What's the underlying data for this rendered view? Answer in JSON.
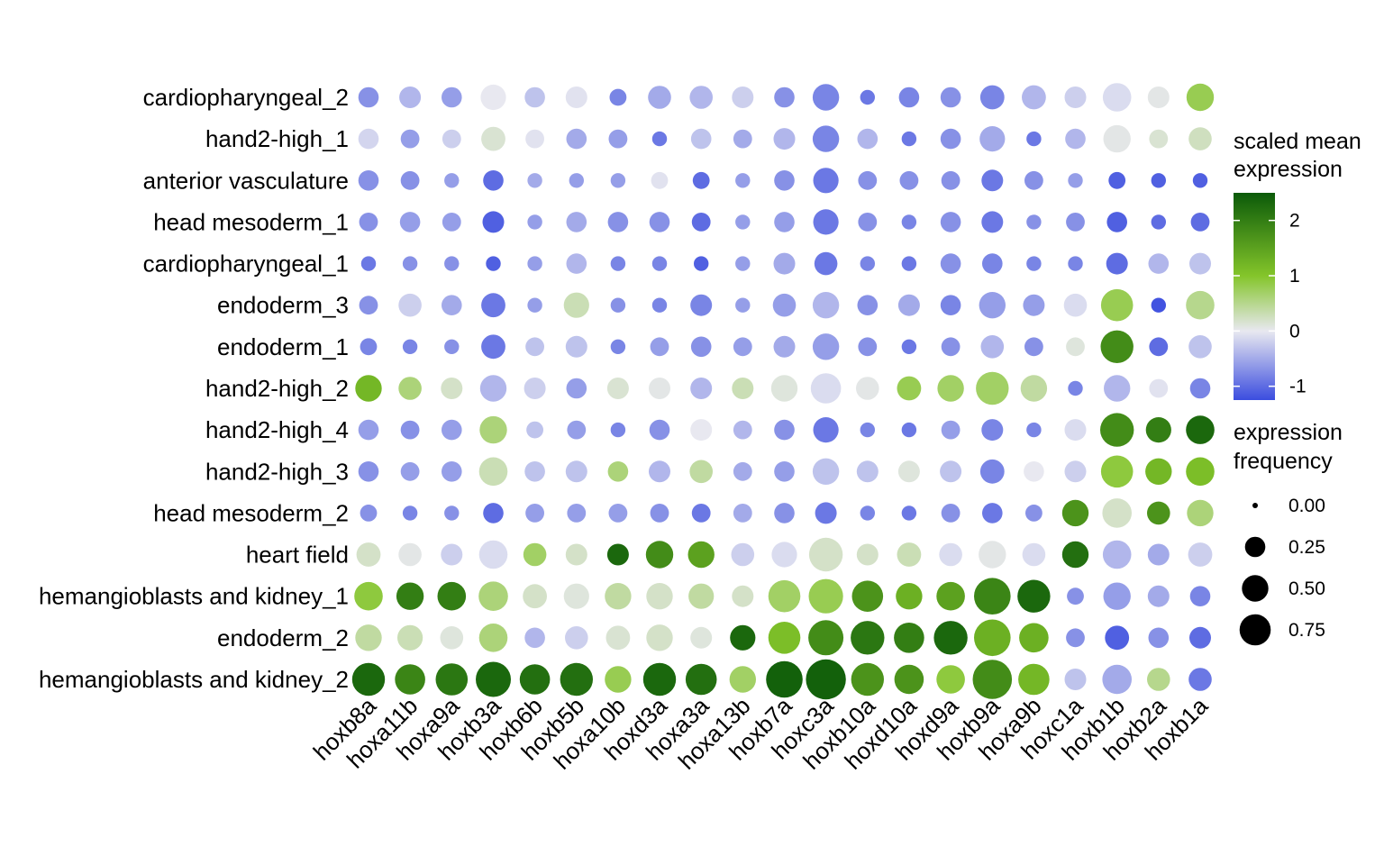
{
  "chart_data": {
    "type": "dot-heatmap",
    "genes": [
      "hoxb8a",
      "hoxa11b",
      "hoxa9a",
      "hoxb3a",
      "hoxb6b",
      "hoxb5b",
      "hoxa10b",
      "hoxd3a",
      "hoxa3a",
      "hoxa13b",
      "hoxb7a",
      "hoxc3a",
      "hoxb10a",
      "hoxd10a",
      "hoxd9a",
      "hoxb9a",
      "hoxa9b",
      "hoxc1a",
      "hoxb1b",
      "hoxb2a",
      "hoxb1a"
    ],
    "clusters": [
      "cardiopharyngeal_2",
      "hand2-high_1",
      "anterior vasculature",
      "head mesoderm_1",
      "cardiopharyngeal_1",
      "endoderm_3",
      "endoderm_1",
      "hand2-high_2",
      "hand2-high_4",
      "hand2-high_3",
      "head mesoderm_2",
      "heart field",
      "hemangioblasts and kidney_1",
      "endoderm_2",
      "hemangioblasts and kidney_2"
    ],
    "expression": [
      [
        -0.7,
        -0.4,
        -0.6,
        0.0,
        -0.3,
        -0.05,
        -0.8,
        -0.5,
        -0.4,
        -0.2,
        -0.7,
        -0.8,
        -0.9,
        -0.8,
        -0.7,
        -0.8,
        -0.4,
        -0.2,
        -0.1,
        0.05,
        0.8
      ],
      [
        -0.15,
        -0.6,
        -0.2,
        0.15,
        -0.05,
        -0.5,
        -0.6,
        -0.9,
        -0.3,
        -0.5,
        -0.4,
        -0.8,
        -0.4,
        -0.9,
        -0.7,
        -0.5,
        -0.9,
        -0.4,
        0.05,
        0.15,
        0.25
      ],
      [
        -0.7,
        -0.7,
        -0.6,
        -1.0,
        -0.5,
        -0.6,
        -0.6,
        -0.05,
        -1.0,
        -0.6,
        -0.7,
        -0.9,
        -0.7,
        -0.7,
        -0.7,
        -0.9,
        -0.7,
        -0.6,
        -1.1,
        -1.1,
        -1.1
      ],
      [
        -0.7,
        -0.6,
        -0.6,
        -1.1,
        -0.6,
        -0.5,
        -0.7,
        -0.7,
        -1.0,
        -0.6,
        -0.6,
        -0.9,
        -0.7,
        -0.8,
        -0.7,
        -0.9,
        -0.7,
        -0.7,
        -1.1,
        -1.0,
        -1.0
      ],
      [
        -0.9,
        -0.7,
        -0.7,
        -1.1,
        -0.6,
        -0.4,
        -0.8,
        -0.8,
        -1.1,
        -0.6,
        -0.5,
        -0.9,
        -0.8,
        -0.9,
        -0.7,
        -0.8,
        -0.8,
        -0.8,
        -1.0,
        -0.4,
        -0.3
      ],
      [
        -0.7,
        -0.2,
        -0.5,
        -0.9,
        -0.6,
        0.3,
        -0.7,
        -0.8,
        -0.8,
        -0.6,
        -0.6,
        -0.4,
        -0.7,
        -0.5,
        -0.8,
        -0.6,
        -0.6,
        -0.1,
        0.8,
        -1.2,
        0.5
      ],
      [
        -0.8,
        -0.8,
        -0.7,
        -0.9,
        -0.3,
        -0.3,
        -0.8,
        -0.6,
        -0.7,
        -0.6,
        -0.5,
        -0.6,
        -0.7,
        -0.9,
        -0.7,
        -0.4,
        -0.7,
        0.1,
        1.8,
        -1.0,
        -0.3
      ],
      [
        1.2,
        0.6,
        0.2,
        -0.4,
        -0.2,
        -0.6,
        0.15,
        0.05,
        -0.4,
        0.3,
        0.1,
        -0.1,
        0.05,
        0.8,
        0.7,
        0.7,
        0.4,
        -0.8,
        -0.4,
        -0.05,
        -0.8
      ],
      [
        -0.6,
        -0.7,
        -0.6,
        0.6,
        -0.3,
        -0.6,
        -0.8,
        -0.7,
        0.0,
        -0.4,
        -0.7,
        -0.9,
        -0.8,
        -0.9,
        -0.6,
        -0.8,
        -0.8,
        -0.1,
        1.8,
        2.0,
        2.3
      ],
      [
        -0.7,
        -0.6,
        -0.6,
        0.3,
        -0.3,
        -0.3,
        0.6,
        -0.4,
        0.4,
        -0.5,
        -0.6,
        -0.3,
        -0.3,
        0.1,
        -0.3,
        -0.8,
        0.0,
        -0.2,
        0.9,
        1.2,
        1.1
      ],
      [
        -0.7,
        -0.8,
        -0.7,
        -1.0,
        -0.6,
        -0.6,
        -0.6,
        -0.7,
        -0.9,
        -0.5,
        -0.7,
        -0.9,
        -0.8,
        -0.9,
        -0.7,
        -0.9,
        -0.7,
        1.7,
        0.2,
        1.7,
        0.6
      ],
      [
        0.2,
        0.05,
        -0.2,
        -0.1,
        0.7,
        0.2,
        2.3,
        1.8,
        1.5,
        -0.2,
        -0.1,
        0.2,
        0.2,
        0.3,
        -0.1,
        0.05,
        -0.1,
        2.2,
        -0.4,
        -0.5,
        -0.2
      ],
      [
        0.9,
        2.0,
        2.0,
        0.6,
        0.2,
        0.1,
        0.4,
        0.2,
        0.4,
        0.2,
        0.7,
        0.8,
        1.7,
        1.3,
        1.5,
        1.9,
        2.3,
        -0.7,
        -0.6,
        -0.5,
        -0.8
      ],
      [
        0.4,
        0.3,
        0.1,
        0.6,
        -0.4,
        -0.2,
        0.15,
        0.2,
        0.1,
        2.3,
        1.1,
        1.8,
        2.1,
        2.0,
        2.3,
        1.3,
        1.3,
        -0.7,
        -1.1,
        -0.7,
        -1.0
      ],
      [
        2.3,
        1.9,
        2.1,
        2.3,
        2.2,
        2.2,
        0.8,
        2.3,
        2.2,
        0.7,
        2.4,
        2.4,
        1.7,
        1.7,
        0.9,
        1.8,
        1.2,
        -0.3,
        -0.5,
        0.5,
        -0.9
      ]
    ],
    "frequency": [
      [
        0.25,
        0.3,
        0.25,
        0.45,
        0.25,
        0.3,
        0.15,
        0.35,
        0.35,
        0.3,
        0.25,
        0.5,
        0.1,
        0.25,
        0.25,
        0.4,
        0.4,
        0.3,
        0.6,
        0.3,
        0.55
      ],
      [
        0.25,
        0.2,
        0.2,
        0.4,
        0.2,
        0.25,
        0.2,
        0.1,
        0.25,
        0.2,
        0.3,
        0.5,
        0.25,
        0.1,
        0.25,
        0.45,
        0.1,
        0.25,
        0.55,
        0.2,
        0.35
      ],
      [
        0.25,
        0.2,
        0.1,
        0.25,
        0.1,
        0.1,
        0.1,
        0.15,
        0.15,
        0.1,
        0.25,
        0.45,
        0.2,
        0.2,
        0.2,
        0.3,
        0.2,
        0.1,
        0.15,
        0.1,
        0.1
      ],
      [
        0.2,
        0.25,
        0.2,
        0.3,
        0.1,
        0.25,
        0.25,
        0.25,
        0.2,
        0.1,
        0.25,
        0.45,
        0.2,
        0.1,
        0.25,
        0.3,
        0.1,
        0.2,
        0.25,
        0.1,
        0.2
      ],
      [
        0.1,
        0.1,
        0.1,
        0.1,
        0.1,
        0.25,
        0.1,
        0.1,
        0.1,
        0.1,
        0.3,
        0.35,
        0.1,
        0.1,
        0.25,
        0.25,
        0.1,
        0.1,
        0.3,
        0.25,
        0.3
      ],
      [
        0.2,
        0.35,
        0.25,
        0.4,
        0.1,
        0.45,
        0.1,
        0.1,
        0.3,
        0.1,
        0.35,
        0.5,
        0.25,
        0.3,
        0.25,
        0.5,
        0.3,
        0.35,
        0.8,
        0.1,
        0.6
      ],
      [
        0.15,
        0.1,
        0.1,
        0.4,
        0.2,
        0.3,
        0.1,
        0.2,
        0.25,
        0.2,
        0.3,
        0.5,
        0.2,
        0.1,
        0.2,
        0.35,
        0.2,
        0.2,
        0.85,
        0.2,
        0.35
      ],
      [
        0.5,
        0.35,
        0.3,
        0.5,
        0.3,
        0.25,
        0.3,
        0.3,
        0.3,
        0.3,
        0.5,
        0.7,
        0.35,
        0.4,
        0.5,
        0.85,
        0.5,
        0.1,
        0.5,
        0.2,
        0.25
      ],
      [
        0.25,
        0.2,
        0.25,
        0.55,
        0.15,
        0.2,
        0.1,
        0.25,
        0.3,
        0.2,
        0.25,
        0.45,
        0.1,
        0.1,
        0.2,
        0.3,
        0.1,
        0.3,
        0.9,
        0.45,
        0.6
      ],
      [
        0.25,
        0.2,
        0.25,
        0.6,
        0.25,
        0.3,
        0.25,
        0.3,
        0.35,
        0.2,
        0.25,
        0.5,
        0.3,
        0.3,
        0.3,
        0.4,
        0.25,
        0.3,
        0.8,
        0.5,
        0.6
      ],
      [
        0.15,
        0.1,
        0.1,
        0.25,
        0.2,
        0.2,
        0.2,
        0.2,
        0.2,
        0.2,
        0.25,
        0.3,
        0.1,
        0.1,
        0.2,
        0.25,
        0.15,
        0.5,
        0.65,
        0.35,
        0.5
      ],
      [
        0.4,
        0.35,
        0.3,
        0.6,
        0.35,
        0.3,
        0.3,
        0.55,
        0.5,
        0.35,
        0.45,
        0.9,
        0.3,
        0.4,
        0.35,
        0.55,
        0.35,
        0.5,
        0.6,
        0.3,
        0.4
      ],
      [
        0.6,
        0.55,
        0.6,
        0.65,
        0.4,
        0.45,
        0.5,
        0.5,
        0.45,
        0.3,
        0.8,
        0.95,
        0.75,
        0.5,
        0.6,
        1.1,
        0.85,
        0.15,
        0.55,
        0.3,
        0.25
      ],
      [
        0.5,
        0.45,
        0.35,
        0.6,
        0.25,
        0.35,
        0.4,
        0.5,
        0.3,
        0.45,
        0.8,
        1.0,
        0.9,
        0.7,
        0.9,
        1.1,
        0.65,
        0.2,
        0.4,
        0.25,
        0.3
      ],
      [
        0.85,
        0.7,
        0.8,
        1.0,
        0.7,
        0.85,
        0.5,
        0.85,
        0.75,
        0.5,
        1.1,
        1.35,
        0.85,
        0.65,
        0.6,
        1.3,
        0.75,
        0.3,
        0.65,
        0.35,
        0.35
      ]
    ],
    "colorbar": {
      "title_lines": [
        "scaled mean",
        "expression"
      ],
      "tick_labels": [
        "2",
        "1",
        "0",
        "-1"
      ],
      "tick_values": [
        2,
        1,
        0,
        -1
      ],
      "range": [
        -1.25,
        2.5
      ],
      "colors": [
        "#3b4ddf",
        "#e8e8f0",
        "#84c52a",
        "#0b5a09"
      ]
    },
    "size_legend": {
      "title_lines": [
        "expression",
        "frequency"
      ],
      "labels": [
        "0.00",
        "0.25",
        "0.50",
        "0.75"
      ],
      "values": [
        0,
        0.25,
        0.5,
        0.75
      ]
    }
  }
}
